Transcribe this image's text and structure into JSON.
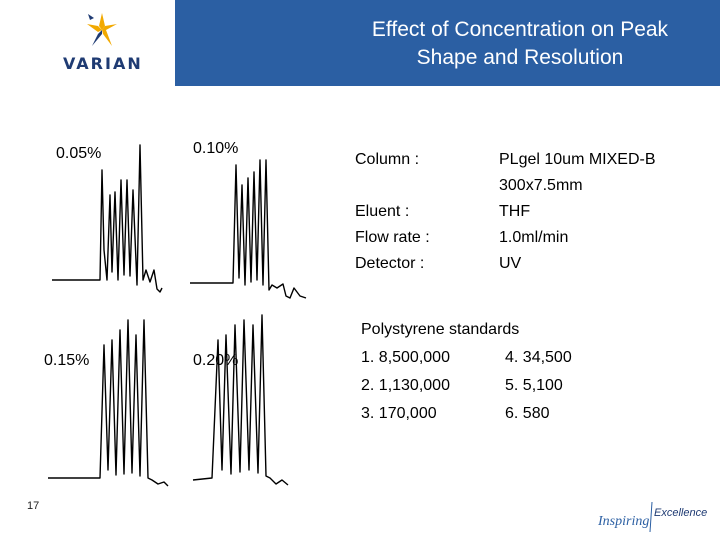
{
  "header": {
    "logo_text": "VARIAN",
    "title_line1": "Effect of Concentration on Peak",
    "title_line2": "Shape and Resolution",
    "brand_color": "#2b5fa3"
  },
  "chromatograms": [
    {
      "label": "0.05%"
    },
    {
      "label": "0.10%"
    },
    {
      "label": "0.15%"
    },
    {
      "label": "0.20%"
    }
  ],
  "conditions": {
    "column_label": "Column :",
    "column_value_line1": "PLgel 10um MIXED-B",
    "column_value_line2": "300x7.5mm",
    "eluent_label": "Eluent :",
    "eluent_value": "THF",
    "flow_label": "Flow rate :",
    "flow_value": "1.0ml/min",
    "detector_label": "Detector :",
    "detector_value": "UV"
  },
  "standards": {
    "heading": "Polystyrene standards",
    "items": [
      "1. 8,500,000",
      "2. 1,130,000",
      "3. 170,000",
      "4. 34,500",
      "5. 5,100",
      "6. 580"
    ]
  },
  "footer": {
    "page_number": "17",
    "tagline_word1": "Inspiring",
    "tagline_word2": "Excellence"
  }
}
